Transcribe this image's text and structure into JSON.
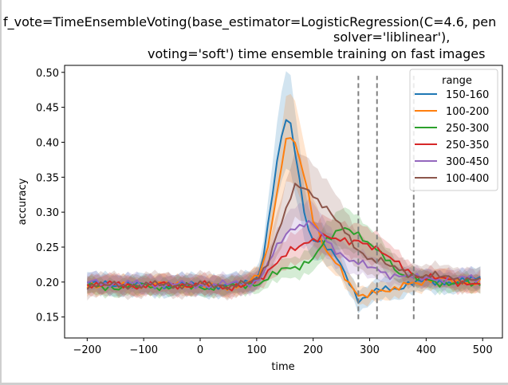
{
  "chart_data": {
    "type": "line",
    "title": [
      "f_vote=TimeEnsembleVoting(base_estimator=LogisticRegression(C=4.6, pen",
      "solver='liblinear'),",
      "voting='soft') time ensemble training on fast images"
    ],
    "xlabel": "time",
    "ylabel": "accuracy",
    "xlim": [
      -240,
      535
    ],
    "ylim": [
      0.12,
      0.51
    ],
    "x_ticks": [
      -200,
      -100,
      0,
      100,
      200,
      300,
      400,
      500
    ],
    "y_ticks": [
      0.15,
      0.2,
      0.25,
      0.3,
      0.35,
      0.4,
      0.45,
      0.5
    ],
    "x_tick_labels": [
      "−200",
      "−100",
      "0",
      "100",
      "200",
      "300",
      "400",
      "500"
    ],
    "y_tick_labels": [
      "0.15",
      "0.20",
      "0.25",
      "0.30",
      "0.35",
      "0.40",
      "0.45",
      "0.50"
    ],
    "grid": false,
    "legend": {
      "title": "range",
      "placement": "top-right"
    },
    "vlines": {
      "x": [
        280,
        313,
        378
      ],
      "y_range": [
        0.147,
        0.495
      ],
      "color": "#808080",
      "style": "dashed"
    },
    "series": [
      {
        "name": "150-160",
        "color": "#1f77b4",
        "points": [
          [
            -200,
            0.197
          ],
          [
            -150,
            0.197
          ],
          [
            -100,
            0.195
          ],
          [
            -50,
            0.196
          ],
          [
            0,
            0.195
          ],
          [
            50,
            0.195
          ],
          [
            80,
            0.198
          ],
          [
            100,
            0.205
          ],
          [
            110,
            0.23
          ],
          [
            120,
            0.28
          ],
          [
            130,
            0.34
          ],
          [
            140,
            0.39
          ],
          [
            150,
            0.43
          ],
          [
            160,
            0.425
          ],
          [
            170,
            0.38
          ],
          [
            180,
            0.32
          ],
          [
            190,
            0.28
          ],
          [
            200,
            0.262
          ],
          [
            220,
            0.252
          ],
          [
            240,
            0.235
          ],
          [
            260,
            0.21
          ],
          [
            270,
            0.19
          ],
          [
            280,
            0.175
          ],
          [
            300,
            0.18
          ],
          [
            320,
            0.19
          ],
          [
            340,
            0.19
          ],
          [
            360,
            0.195
          ],
          [
            380,
            0.2
          ],
          [
            420,
            0.2
          ],
          [
            460,
            0.201
          ],
          [
            500,
            0.205
          ]
        ],
        "band": [
          0.015,
          0.012,
          0.018,
          0.04,
          0.045,
          0.045,
          0.045,
          0.035,
          0.02,
          0.015,
          0.012,
          0.015,
          0.018,
          0.015,
          0.013,
          0.012,
          0.012,
          0.012,
          0.012,
          0.012,
          0.012,
          0.012,
          0.012,
          0.012,
          0.012,
          0.012
        ]
      },
      {
        "name": "100-200",
        "color": "#ff7f0e",
        "points": [
          [
            -200,
            0.197
          ],
          [
            -150,
            0.195
          ],
          [
            -100,
            0.196
          ],
          [
            -50,
            0.197
          ],
          [
            0,
            0.195
          ],
          [
            50,
            0.194
          ],
          [
            80,
            0.198
          ],
          [
            100,
            0.205
          ],
          [
            110,
            0.22
          ],
          [
            120,
            0.25
          ],
          [
            130,
            0.3
          ],
          [
            140,
            0.35
          ],
          [
            150,
            0.4
          ],
          [
            160,
            0.41
          ],
          [
            170,
            0.395
          ],
          [
            180,
            0.36
          ],
          [
            190,
            0.33
          ],
          [
            200,
            0.29
          ],
          [
            220,
            0.25
          ],
          [
            240,
            0.23
          ],
          [
            260,
            0.2
          ],
          [
            280,
            0.178
          ],
          [
            300,
            0.185
          ],
          [
            320,
            0.19
          ],
          [
            340,
            0.185
          ],
          [
            360,
            0.195
          ],
          [
            380,
            0.2
          ],
          [
            420,
            0.205
          ],
          [
            460,
            0.2
          ],
          [
            500,
            0.2
          ]
        ],
        "band": [
          0.013
        ]
      },
      {
        "name": "250-300",
        "color": "#2ca02c",
        "points": [
          [
            -200,
            0.193
          ],
          [
            -150,
            0.193
          ],
          [
            -100,
            0.194
          ],
          [
            -50,
            0.194
          ],
          [
            0,
            0.193
          ],
          [
            50,
            0.193
          ],
          [
            100,
            0.198
          ],
          [
            120,
            0.205
          ],
          [
            140,
            0.215
          ],
          [
            160,
            0.22
          ],
          [
            180,
            0.225
          ],
          [
            200,
            0.235
          ],
          [
            220,
            0.255
          ],
          [
            240,
            0.27
          ],
          [
            255,
            0.28
          ],
          [
            270,
            0.275
          ],
          [
            290,
            0.26
          ],
          [
            310,
            0.245
          ],
          [
            330,
            0.235
          ],
          [
            350,
            0.215
          ],
          [
            380,
            0.205
          ],
          [
            420,
            0.2
          ],
          [
            460,
            0.198
          ],
          [
            500,
            0.196
          ]
        ],
        "band": [
          0.012
        ]
      },
      {
        "name": "250-350",
        "color": "#d62728",
        "points": [
          [
            -200,
            0.197
          ],
          [
            -150,
            0.196
          ],
          [
            -100,
            0.195
          ],
          [
            -50,
            0.196
          ],
          [
            0,
            0.196
          ],
          [
            50,
            0.193
          ],
          [
            100,
            0.198
          ],
          [
            120,
            0.215
          ],
          [
            140,
            0.235
          ],
          [
            160,
            0.245
          ],
          [
            180,
            0.25
          ],
          [
            200,
            0.26
          ],
          [
            220,
            0.27
          ],
          [
            240,
            0.262
          ],
          [
            260,
            0.255
          ],
          [
            280,
            0.258
          ],
          [
            300,
            0.255
          ],
          [
            320,
            0.245
          ],
          [
            340,
            0.23
          ],
          [
            360,
            0.22
          ],
          [
            380,
            0.21
          ],
          [
            420,
            0.205
          ],
          [
            460,
            0.2
          ],
          [
            500,
            0.198
          ]
        ],
        "band": [
          0.013
        ]
      },
      {
        "name": "300-450",
        "color": "#9467bd",
        "points": [
          [
            -200,
            0.2
          ],
          [
            -150,
            0.198
          ],
          [
            -100,
            0.197
          ],
          [
            -50,
            0.197
          ],
          [
            0,
            0.196
          ],
          [
            50,
            0.197
          ],
          [
            100,
            0.2
          ],
          [
            120,
            0.225
          ],
          [
            140,
            0.255
          ],
          [
            160,
            0.275
          ],
          [
            180,
            0.285
          ],
          [
            200,
            0.283
          ],
          [
            220,
            0.26
          ],
          [
            240,
            0.245
          ],
          [
            260,
            0.235
          ],
          [
            280,
            0.228
          ],
          [
            300,
            0.22
          ],
          [
            320,
            0.215
          ],
          [
            340,
            0.21
          ],
          [
            360,
            0.21
          ],
          [
            380,
            0.205
          ],
          [
            420,
            0.205
          ],
          [
            460,
            0.205
          ],
          [
            500,
            0.205
          ]
        ],
        "band": [
          0.013
        ]
      },
      {
        "name": "100-400",
        "color": "#8c564b",
        "points": [
          [
            -200,
            0.196
          ],
          [
            -150,
            0.195
          ],
          [
            -100,
            0.196
          ],
          [
            -50,
            0.196
          ],
          [
            0,
            0.196
          ],
          [
            50,
            0.195
          ],
          [
            100,
            0.2
          ],
          [
            120,
            0.23
          ],
          [
            140,
            0.28
          ],
          [
            160,
            0.32
          ],
          [
            170,
            0.338
          ],
          [
            180,
            0.335
          ],
          [
            200,
            0.325
          ],
          [
            220,
            0.31
          ],
          [
            240,
            0.29
          ],
          [
            260,
            0.265
          ],
          [
            280,
            0.245
          ],
          [
            300,
            0.235
          ],
          [
            320,
            0.23
          ],
          [
            340,
            0.22
          ],
          [
            360,
            0.215
          ],
          [
            380,
            0.21
          ],
          [
            420,
            0.208
          ],
          [
            460,
            0.205
          ],
          [
            500,
            0.203
          ]
        ],
        "band": [
          0.016
        ]
      }
    ]
  }
}
